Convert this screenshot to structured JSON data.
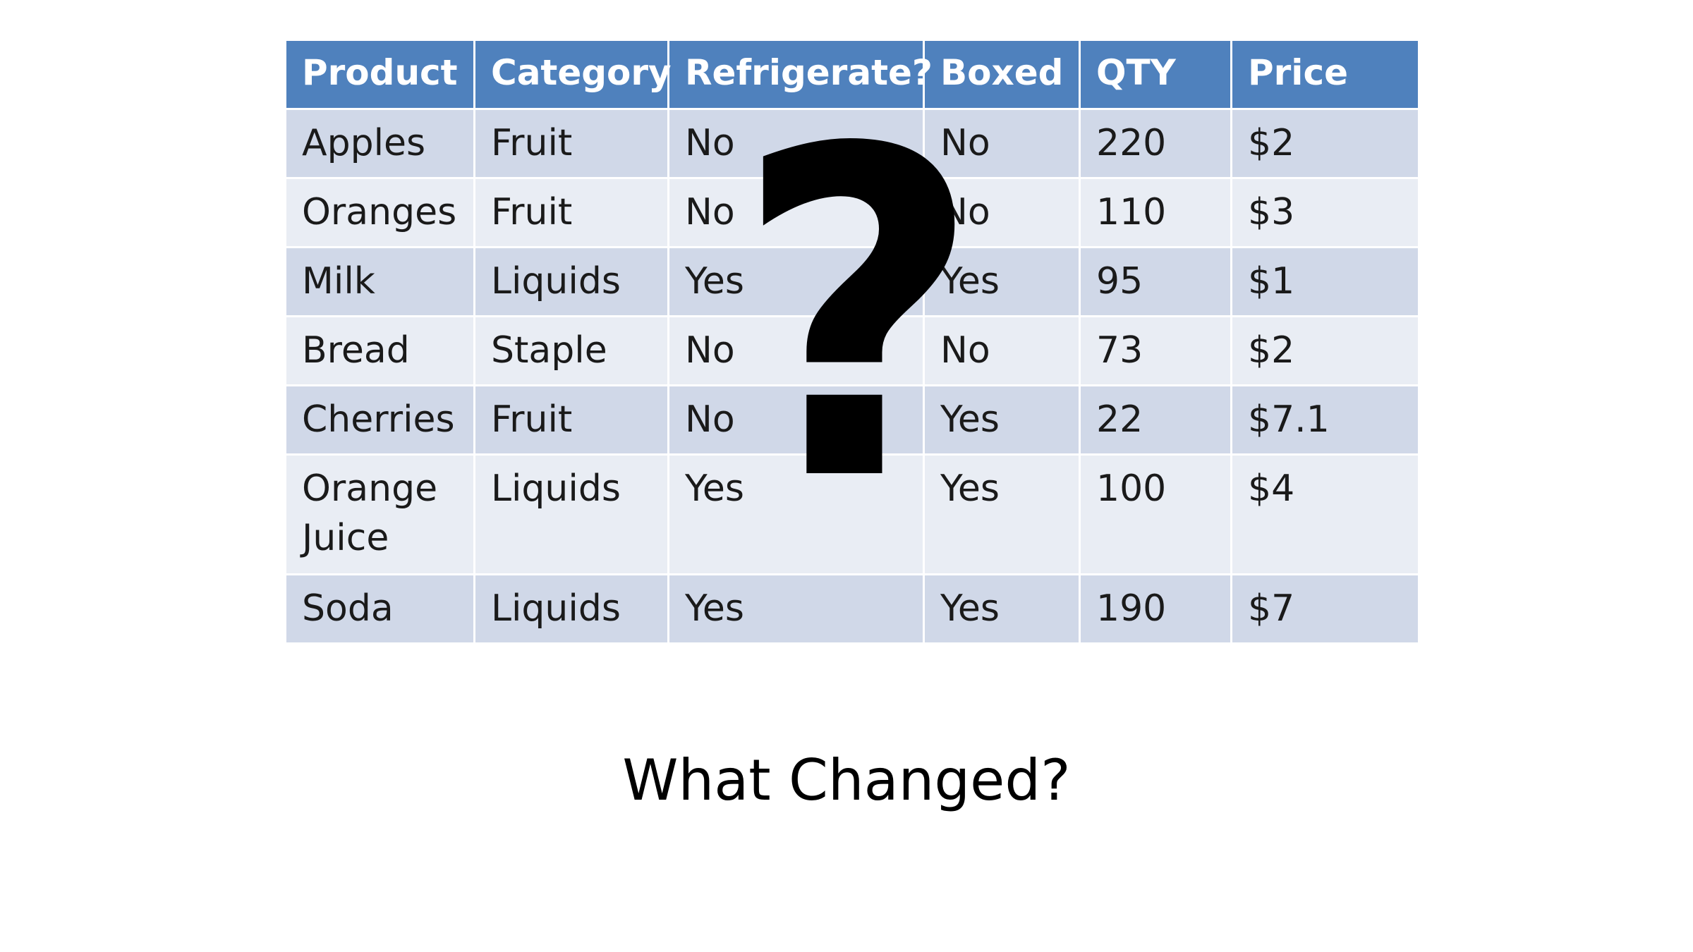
{
  "table": {
    "headers": [
      "Product",
      "Category",
      "Refrigerate?",
      "Boxed",
      "QTY",
      "Price"
    ],
    "rows": [
      [
        "Apples",
        "Fruit",
        "No",
        "No",
        "220",
        "$2"
      ],
      [
        "Oranges",
        "Fruit",
        "No",
        "No",
        "110",
        "$3"
      ],
      [
        "Milk",
        "Liquids",
        "Yes",
        "Yes",
        "95",
        "$1"
      ],
      [
        "Bread",
        "Staple",
        "No",
        "No",
        "73",
        "$2"
      ],
      [
        "Cherries",
        "Fruit",
        "No",
        "Yes",
        "22",
        "$7.1"
      ],
      [
        "Orange Juice",
        "Liquids",
        "Yes",
        "Yes",
        "100",
        "$4"
      ],
      [
        "Soda",
        "Liquids",
        "Yes",
        "Yes",
        "190",
        "$7"
      ]
    ]
  },
  "overlay": {
    "symbol": "?"
  },
  "caption": "What Changed?",
  "colors": {
    "header_bg": "#4f81bd",
    "row_odd_bg": "#d0d8e8",
    "row_even_bg": "#e9edf4"
  }
}
